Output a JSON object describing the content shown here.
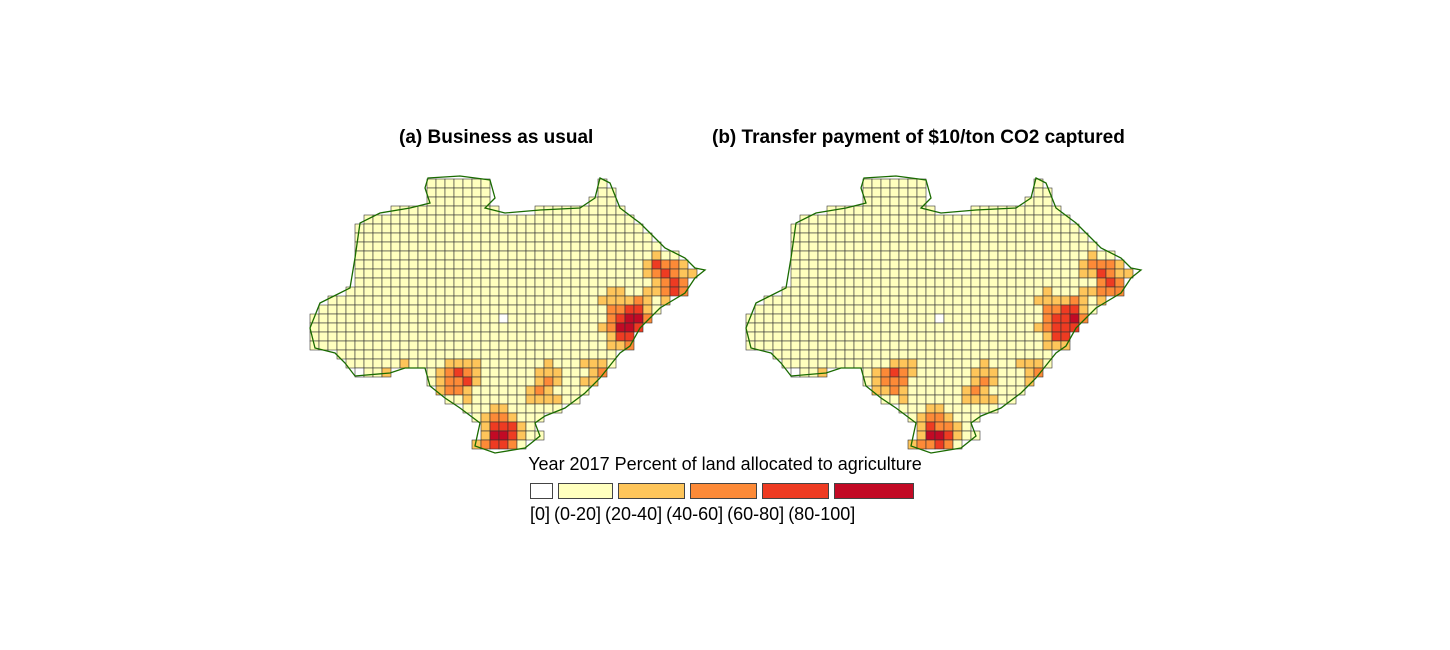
{
  "panels": [
    {
      "title": "(a) Business as usual"
    },
    {
      "title": "(b) Transfer payment of $10/ton CO2 captured"
    }
  ],
  "legend": {
    "title": "Year 2017 Percent of land allocated to agriculture",
    "classes": [
      {
        "label": "[0]",
        "color": "#ffffff"
      },
      {
        "label": "(0-20]",
        "color": "#ffffbe"
      },
      {
        "label": "(20-40]",
        "color": "#fec55a"
      },
      {
        "label": "(40-60]",
        "color": "#fd8a37"
      },
      {
        "label": "(60-80]",
        "color": "#ee3b22"
      },
      {
        "label": "(80-100]",
        "color": "#c20a25"
      }
    ]
  },
  "style": {
    "grid_stroke": "#333333",
    "boundary_color": "#1a6b00"
  }
}
